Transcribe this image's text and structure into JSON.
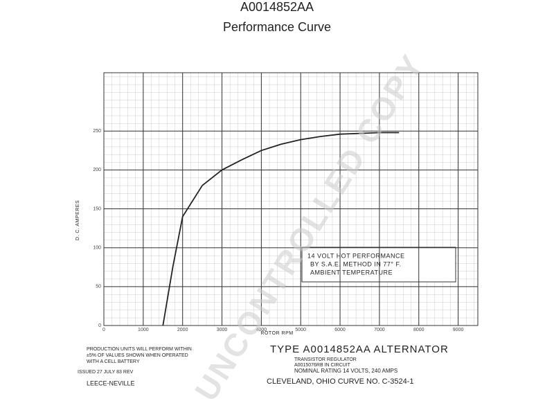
{
  "chart_data": {
    "type": "line",
    "title": "A0014852AA",
    "subtitle": "Performance Curve",
    "x_label": "ROTOR RPM",
    "y_label": "D. C. AMPERES",
    "x": [
      1500,
      1750,
      2000,
      2500,
      3000,
      3500,
      4000,
      4500,
      5000,
      5500,
      6000,
      6500,
      7000,
      7500
    ],
    "values": [
      0,
      75,
      140,
      180,
      200,
      213,
      225,
      233,
      239,
      243,
      246,
      247,
      248,
      248
    ],
    "color": "#222222",
    "xlim": [
      0,
      9500
    ],
    "xticks": [
      0,
      1000,
      2000,
      3000,
      4000,
      5000,
      6000,
      7000,
      8000,
      9000
    ],
    "ylim": [
      0,
      325
    ],
    "yticks": [
      0,
      50,
      100,
      150,
      200,
      250
    ],
    "grid": true,
    "annotation_box": [
      "14 VOLT HOT PERFORMANCE",
      "BY S.A.E. METHOD IN 77° F.",
      "AMBIENT TEMPERATURE"
    ],
    "notes": [
      "PRODUCTION UNITS WILL PERFORM WITHIN",
      "±5% OF VALUES SHOWN WHEN OPERATED",
      "WITH A CELL BATTERY"
    ],
    "issued": "ISSUED 27 JULY 83 REV",
    "company": "LEECE-NEVILLE",
    "type_line": "TYPE A0014852AA ALTERNATOR",
    "regulator": [
      "TRANSISTOR REGULATOR",
      "A0015076RB IN CIRCUIT"
    ],
    "rating": "NOMINAL RATING 14 VOLTS, 240 AMPS",
    "curve_no": "CLEVELAND, OHIO CURVE NO. C-3524-1",
    "watermark": "UNCONTROLLED COPY"
  }
}
